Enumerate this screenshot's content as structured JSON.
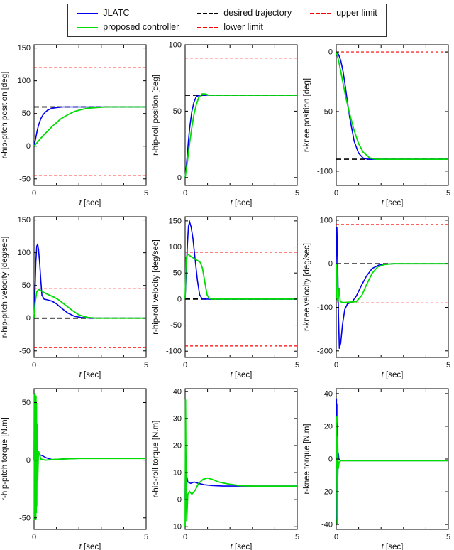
{
  "colors": {
    "blue": "#0000ee",
    "green": "#00dd00",
    "desired": "#000000",
    "limit": "#ff0000"
  },
  "legend": {
    "items": [
      {
        "label": "JLATC",
        "color": "#0000ee",
        "dash": "solid"
      },
      {
        "label": "proposed controller",
        "color": "#00dd00",
        "dash": "solid"
      },
      {
        "label": "desired trajectory",
        "color": "#000000",
        "dash": "dashed"
      },
      {
        "label": "lower limit",
        "color": "#ff0000",
        "dash": "dashed"
      },
      {
        "label": "upper limit",
        "color": "#ff0000",
        "dash": "dashed"
      }
    ]
  },
  "chart_data": [
    {
      "type": "line",
      "ylabel": "r-hip-pitch position [deg]",
      "xlabel": "t [sec]",
      "xlim": [
        0,
        5
      ],
      "ylim": [
        -60,
        155
      ],
      "xticks": [
        0,
        1,
        2,
        3,
        4,
        5
      ],
      "xtick_labels": [
        0,
        5
      ],
      "yticks": [
        -50,
        0,
        50,
        100,
        150
      ],
      "desired": 60,
      "upper_limit": 120,
      "lower_limit": -45,
      "series": [
        {
          "name": "JLATC",
          "color": "blue",
          "x": [
            0,
            0.05,
            0.1,
            0.15,
            0.2,
            0.3,
            0.4,
            0.5,
            0.6,
            0.8,
            1.0,
            1.3,
            1.8,
            2.5,
            5
          ],
          "y": [
            0,
            8,
            17,
            25,
            32,
            42,
            48,
            52,
            55,
            58,
            59,
            60,
            60,
            60,
            60
          ]
        },
        {
          "name": "proposed controller",
          "color": "green",
          "x": [
            0,
            0.2,
            0.4,
            0.6,
            0.8,
            1.0,
            1.2,
            1.5,
            1.8,
            2.1,
            2.4,
            2.8,
            3.2,
            5
          ],
          "y": [
            0,
            8,
            16,
            23,
            30,
            36,
            42,
            48,
            53,
            56,
            58,
            59,
            60,
            60
          ]
        }
      ]
    },
    {
      "type": "line",
      "ylabel": "r-hip-roll position [deg]",
      "xlabel": "t [sec]",
      "xlim": [
        0,
        5
      ],
      "ylim": [
        -6,
        100
      ],
      "xticks": [
        0,
        1,
        2,
        3,
        4,
        5
      ],
      "xtick_labels": [
        0,
        5
      ],
      "yticks": [
        0,
        50,
        100
      ],
      "desired": 62,
      "upper_limit": 90,
      "series": [
        {
          "name": "JLATC",
          "color": "blue",
          "x": [
            0,
            0.05,
            0.1,
            0.15,
            0.2,
            0.3,
            0.4,
            0.5,
            0.65,
            0.8,
            5
          ],
          "y": [
            0,
            8,
            18,
            28,
            37,
            50,
            57,
            61,
            62,
            62,
            62
          ]
        },
        {
          "name": "proposed controller",
          "color": "green",
          "x": [
            0,
            0.1,
            0.2,
            0.3,
            0.4,
            0.5,
            0.6,
            0.75,
            0.9,
            1.05,
            1.2,
            5
          ],
          "y": [
            0,
            12,
            26,
            38,
            48,
            55,
            60,
            63,
            63,
            62,
            62,
            62
          ]
        }
      ]
    },
    {
      "type": "line",
      "ylabel": "r-knee position [deg]",
      "xlabel": "t [sec]",
      "xlim": [
        0,
        5
      ],
      "ylim": [
        -112,
        6
      ],
      "xticks": [
        0,
        1,
        2,
        3,
        4,
        5
      ],
      "xtick_labels": [
        0,
        5
      ],
      "yticks": [
        -100,
        -50,
        0
      ],
      "desired": -90,
      "upper_limit": 0,
      "series": [
        {
          "name": "JLATC",
          "color": "blue",
          "x": [
            0,
            0.1,
            0.2,
            0.3,
            0.4,
            0.5,
            0.6,
            0.8,
            1.0,
            1.2,
            1.4,
            5
          ],
          "y": [
            0,
            -2,
            -7,
            -16,
            -28,
            -42,
            -55,
            -75,
            -85,
            -89,
            -90,
            -90
          ]
        },
        {
          "name": "proposed controller",
          "color": "green",
          "x": [
            0,
            0.1,
            0.2,
            0.3,
            0.45,
            0.6,
            0.8,
            1.0,
            1.2,
            1.5,
            1.8,
            5
          ],
          "y": [
            0,
            -7,
            -16,
            -26,
            -40,
            -52,
            -66,
            -77,
            -84,
            -89,
            -90,
            -90
          ]
        }
      ]
    },
    {
      "type": "line",
      "ylabel": "r-hip-pitch velocity [deg/sec]",
      "xlabel": "t [sec]",
      "xlim": [
        0,
        5
      ],
      "ylim": [
        -60,
        155
      ],
      "xticks": [
        0,
        1,
        2,
        3,
        4,
        5
      ],
      "xtick_labels": [
        0,
        5
      ],
      "yticks": [
        -50,
        0,
        50,
        100,
        150
      ],
      "desired": 0,
      "upper_limit": 45,
      "lower_limit": -45,
      "series": [
        {
          "name": "JLATC",
          "color": "blue",
          "x": [
            0,
            0.04,
            0.08,
            0.12,
            0.16,
            0.2,
            0.25,
            0.3,
            0.35,
            0.45,
            0.6,
            0.8,
            1.0,
            1.2,
            1.5,
            1.8,
            2.1,
            2.5,
            5
          ],
          "y": [
            0,
            40,
            85,
            110,
            113,
            105,
            85,
            58,
            35,
            29,
            28,
            26,
            22,
            16,
            8,
            3,
            1,
            0,
            0
          ]
        },
        {
          "name": "proposed controller",
          "color": "green",
          "x": [
            0,
            0.05,
            0.12,
            0.2,
            0.35,
            0.5,
            0.7,
            0.9,
            1.1,
            1.4,
            1.7,
            2.0,
            2.4,
            2.8,
            5
          ],
          "y": [
            0,
            24,
            40,
            44,
            41,
            38,
            35,
            32,
            28,
            20,
            12,
            5,
            1,
            0,
            0
          ]
        }
      ]
    },
    {
      "type": "line",
      "ylabel": "r-hip-roll velocity [deg/sec]",
      "xlabel": "t [sec]",
      "xlim": [
        0,
        5
      ],
      "ylim": [
        -112,
        158
      ],
      "xticks": [
        0,
        1,
        2,
        3,
        4,
        5
      ],
      "xtick_labels": [
        0,
        5
      ],
      "yticks": [
        -100,
        -50,
        0,
        50,
        100,
        150
      ],
      "desired": 0,
      "upper_limit": 90,
      "lower_limit": -90,
      "series": [
        {
          "name": "JLATC",
          "color": "blue",
          "x": [
            0,
            0.05,
            0.1,
            0.15,
            0.2,
            0.27,
            0.35,
            0.45,
            0.55,
            0.65,
            0.75,
            0.85,
            5
          ],
          "y": [
            0,
            55,
            105,
            140,
            148,
            138,
            115,
            75,
            35,
            8,
            1,
            0,
            0
          ]
        },
        {
          "name": "proposed controller",
          "color": "green",
          "x": [
            0,
            0.04,
            0.12,
            0.25,
            0.4,
            0.55,
            0.68,
            0.78,
            0.88,
            0.98,
            1.08,
            1.2,
            5
          ],
          "y": [
            0,
            80,
            86,
            82,
            78,
            74,
            70,
            58,
            32,
            8,
            1,
            0,
            0
          ]
        }
      ]
    },
    {
      "type": "line",
      "ylabel": "r-knee velocity [deg/sec]",
      "xlabel": "t [sec]",
      "xlim": [
        0,
        5
      ],
      "ylim": [
        -215,
        108
      ],
      "xticks": [
        0,
        1,
        2,
        3,
        4,
        5
      ],
      "xtick_labels": [
        0,
        5
      ],
      "yticks": [
        -200,
        -100,
        0,
        100
      ],
      "desired": 0,
      "upper_limit": 90,
      "lower_limit": -90,
      "series": [
        {
          "name": "JLATC",
          "color": "blue",
          "x": [
            0,
            0.03,
            0.06,
            0.1,
            0.14,
            0.2,
            0.28,
            0.38,
            0.5,
            0.7,
            0.9,
            1.1,
            1.35,
            1.6,
            1.9,
            2.2,
            2.6,
            5
          ],
          "y": [
            0,
            85,
            15,
            -120,
            -195,
            -182,
            -140,
            -105,
            -92,
            -88,
            -74,
            -52,
            -28,
            -11,
            -3,
            -1,
            0,
            0
          ]
        },
        {
          "name": "proposed controller",
          "color": "green",
          "x": [
            0,
            0.03,
            0.08,
            0.13,
            0.18,
            0.3,
            0.6,
            0.9,
            1.15,
            1.35,
            1.6,
            1.85,
            2.15,
            2.5,
            5
          ],
          "y": [
            0,
            -78,
            -88,
            -55,
            -87,
            -89,
            -88,
            -87,
            -72,
            -48,
            -22,
            -7,
            -2,
            0,
            0
          ]
        }
      ]
    },
    {
      "type": "line",
      "ylabel": "r-hip-pitch torque [N.m]",
      "xlabel": "t [sec]",
      "xlim": [
        0,
        5
      ],
      "ylim": [
        -60,
        62
      ],
      "xticks": [
        0,
        1,
        2,
        3,
        4,
        5
      ],
      "xtick_labels": [
        0,
        5
      ],
      "yticks": [
        -50,
        0,
        50
      ],
      "series": [
        {
          "name": "JLATC",
          "color": "blue",
          "x": [
            0,
            0.02,
            0.05,
            0.1,
            0.2,
            0.35,
            0.55,
            0.8,
            1.1,
            1.5,
            2,
            5
          ],
          "y": [
            0,
            38,
            12,
            6,
            5,
            4,
            2,
            0.5,
            0.8,
            1.2,
            1.5,
            1.5
          ]
        },
        {
          "name": "proposed controller",
          "color": "green",
          "x": [
            0,
            0.01,
            0.02,
            0.03,
            0.04,
            0.05,
            0.06,
            0.07,
            0.08,
            0.09,
            0.1,
            0.11,
            0.12,
            0.14,
            0.16,
            0.2,
            0.3,
            0.5,
            0.8,
            1.3,
            2,
            5
          ],
          "y": [
            0,
            57,
            -52,
            55,
            -50,
            58,
            -49,
            54,
            -52,
            56,
            -46,
            50,
            -40,
            32,
            -18,
            8,
            1,
            0,
            0.5,
            1,
            1.5,
            1.5
          ]
        }
      ]
    },
    {
      "type": "line",
      "ylabel": "r-hip-roll torque [N.m]",
      "xlabel": "t [sec]",
      "xlim": [
        0,
        5
      ],
      "ylim": [
        -11,
        41
      ],
      "xticks": [
        0,
        1,
        2,
        3,
        4,
        5
      ],
      "xtick_labels": [
        0,
        5
      ],
      "yticks": [
        -10,
        0,
        10,
        20,
        30,
        40
      ],
      "series": [
        {
          "name": "JLATC",
          "color": "blue",
          "x": [
            0,
            0.02,
            0.06,
            0.12,
            0.25,
            0.4,
            0.6,
            0.85,
            1.2,
            1.7,
            2.3,
            5
          ],
          "y": [
            0,
            20,
            9,
            6.5,
            6,
            6.5,
            6,
            5.5,
            5.2,
            5,
            5,
            5
          ]
        },
        {
          "name": "proposed controller",
          "color": "green",
          "x": [
            0,
            0.02,
            0.04,
            0.07,
            0.12,
            0.2,
            0.3,
            0.45,
            0.6,
            0.8,
            1.0,
            1.2,
            1.5,
            1.9,
            2.4,
            3,
            5
          ],
          "y": [
            -10,
            37,
            4,
            -8,
            2,
            3,
            2,
            3.5,
            6,
            7.5,
            8,
            7.5,
            6.5,
            5.8,
            5.2,
            5,
            5
          ]
        }
      ]
    },
    {
      "type": "line",
      "ylabel": "r-knee torque [N.m]",
      "xlabel": "t [sec]",
      "xlim": [
        0,
        5
      ],
      "ylim": [
        -43,
        43
      ],
      "xticks": [
        0,
        1,
        2,
        3,
        4,
        5
      ],
      "xtick_labels": [
        0,
        5
      ],
      "yticks": [
        -40,
        -20,
        0,
        20,
        40
      ],
      "series": [
        {
          "name": "JLATC",
          "color": "blue",
          "x": [
            0,
            0.01,
            0.02,
            0.03,
            0.04,
            0.05,
            0.07,
            0.09,
            0.12,
            0.2,
            0.4,
            0.8,
            1.5,
            5
          ],
          "y": [
            0,
            37,
            -37,
            34,
            -28,
            22,
            -12,
            4,
            0,
            -1,
            -1,
            -1,
            -1,
            -1
          ]
        },
        {
          "name": "proposed controller",
          "color": "green",
          "x": [
            0,
            0.02,
            0.04,
            0.06,
            0.09,
            0.13,
            0.2,
            0.4,
            0.8,
            1.5,
            5
          ],
          "y": [
            0,
            26,
            -40,
            14,
            -6,
            -2,
            -1,
            -1,
            -1,
            -1,
            -1
          ]
        }
      ]
    }
  ]
}
